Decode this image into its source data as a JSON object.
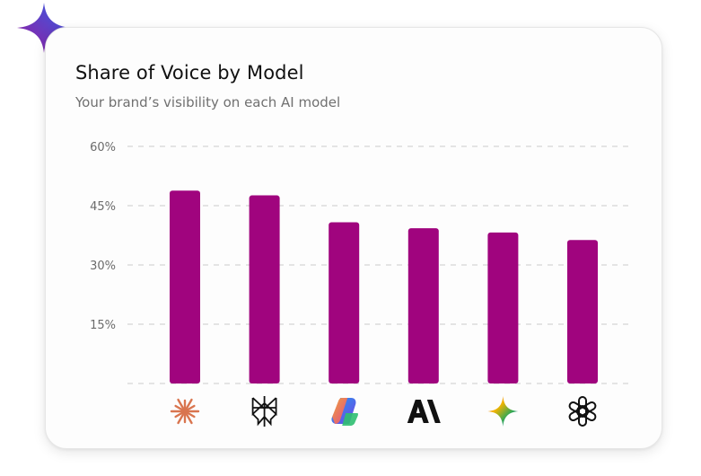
{
  "card": {
    "title": "Share of Voice by Model",
    "subtitle": "Your brand’s visibility on each AI model"
  },
  "colors": {
    "bar": "#a0047e",
    "grid": "#dcdcdc",
    "tick_text": "#6b6b6b",
    "sparkle_start": "#2f5fe8",
    "sparkle_end": "#9c1a9c"
  },
  "chart_data": {
    "type": "bar",
    "title": "Share of Voice by Model",
    "subtitle": "Your brand’s visibility on each AI model",
    "xlabel": "",
    "ylabel": "",
    "ylim": [
      0,
      60
    ],
    "yticks": [
      {
        "value": 60,
        "label": "60%"
      },
      {
        "value": 45,
        "label": "45%"
      },
      {
        "value": 30,
        "label": "30%"
      },
      {
        "value": 15,
        "label": "15%"
      }
    ],
    "grid": true,
    "categories": [
      "perplexity-sparkle-icon",
      "perplexity-logo-icon",
      "copilot-icon",
      "anthropic-icon",
      "gemini-icon",
      "openai-icon"
    ],
    "category_icons": [
      "claude-starburst-icon",
      "perplexity-icon",
      "copilot-icon",
      "anthropic-icon",
      "gemini-icon",
      "openai-icon"
    ],
    "values": [
      48.8,
      47.6,
      40.8,
      39.3,
      38.2,
      36.3
    ]
  }
}
